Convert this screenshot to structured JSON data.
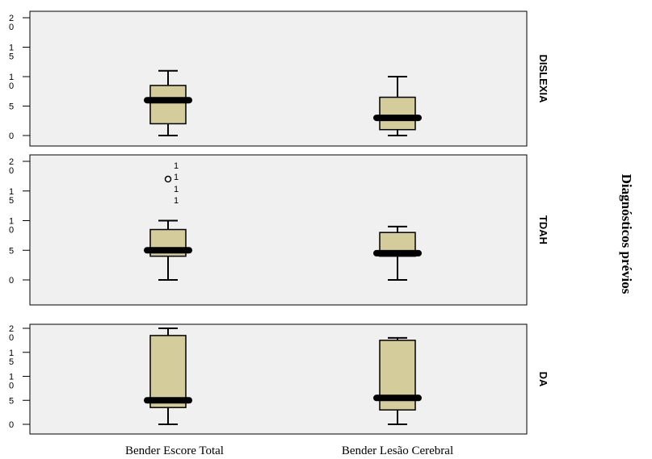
{
  "chart_data": {
    "type": "boxplot",
    "right_axis_title": "Diagnósticos prévios",
    "categories": [
      "Bender Escore Total",
      "Bender Lesão Cerebral"
    ],
    "y_tick_labels": [
      "2\n0",
      "1\n5",
      "1\n0",
      "5",
      "0"
    ],
    "ylim": [
      0,
      20
    ],
    "colors": {
      "panel_bg": "#f0f0f0",
      "box_fill": "#d4cc9a",
      "stroke": "#000000"
    },
    "panels": [
      {
        "label": "DISLEXIA",
        "boxes": [
          {
            "category": "Bender Escore Total",
            "min": 0,
            "q1": 2,
            "median": 6,
            "q3": 8.5,
            "max": 11,
            "outliers": []
          },
          {
            "category": "Bender Lesão Cerebral",
            "min": 0,
            "q1": 1,
            "median": 3,
            "q3": 6.5,
            "max": 10,
            "outliers": []
          }
        ]
      },
      {
        "label": "TDAH",
        "boxes": [
          {
            "category": "Bender Escore Total",
            "min": 0,
            "q1": 4,
            "median": 5,
            "q3": 8.5,
            "max": 10,
            "outliers": [
              {
                "value": 17,
                "label": "1\n1"
              }
            ],
            "outlier_notes": [
              "1",
              "1"
            ]
          },
          {
            "category": "Bender Lesão Cerebral",
            "min": 0,
            "q1": 4,
            "median": 4.5,
            "q3": 8,
            "max": 9,
            "outliers": []
          }
        ]
      },
      {
        "label": "DA",
        "boxes": [
          {
            "category": "Bender Escore Total",
            "min": 0,
            "q1": 3.5,
            "median": 5,
            "q3": 18.5,
            "max": 20,
            "outliers": []
          },
          {
            "category": "Bender Lesão Cerebral",
            "min": 0,
            "q1": 3,
            "median": 5.5,
            "q3": 17.5,
            "max": 18,
            "outliers": []
          }
        ]
      }
    ]
  }
}
